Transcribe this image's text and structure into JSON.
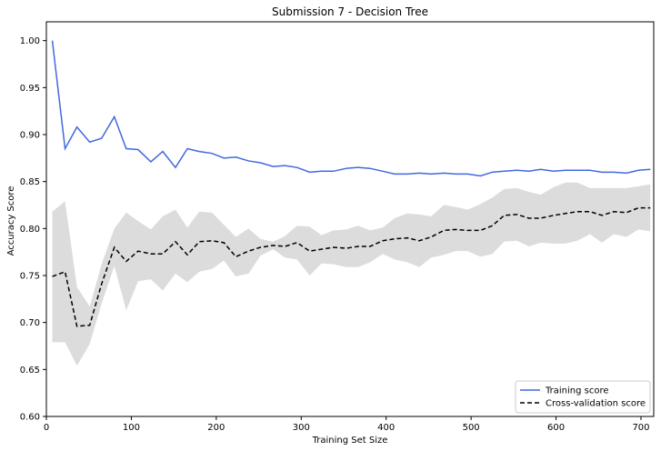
{
  "chart_data": {
    "type": "line",
    "title": "Submission 7 - Decision Tree",
    "xlabel": "Training Set Size",
    "ylabel": "Accuracy Score",
    "xlim": [
      0,
      715
    ],
    "ylim": [
      0.6,
      1.02
    ],
    "xticks": [
      0,
      100,
      200,
      300,
      400,
      500,
      600,
      700
    ],
    "yticks": [
      "0.60",
      "0.65",
      "0.70",
      "0.75",
      "0.80",
      "0.85",
      "0.90",
      "0.95",
      "1.00"
    ],
    "grid": false,
    "legend_position": "lower-right",
    "x": [
      7,
      22,
      36,
      51,
      65,
      80,
      94,
      108,
      123,
      137,
      152,
      166,
      180,
      195,
      209,
      223,
      238,
      252,
      267,
      281,
      295,
      310,
      324,
      338,
      353,
      367,
      381,
      396,
      410,
      425,
      439,
      453,
      468,
      482,
      496,
      511,
      525,
      539,
      554,
      568,
      582,
      597,
      611,
      625,
      640,
      654,
      668,
      683,
      697,
      711
    ],
    "series": [
      {
        "name": "Training score",
        "color": "#4169e1",
        "style": "solid",
        "values": [
          1.0,
          0.885,
          0.908,
          0.892,
          0.896,
          0.919,
          0.885,
          0.884,
          0.871,
          0.882,
          0.865,
          0.885,
          0.882,
          0.88,
          0.875,
          0.876,
          0.872,
          0.87,
          0.866,
          0.867,
          0.865,
          0.86,
          0.861,
          0.861,
          0.864,
          0.865,
          0.864,
          0.861,
          0.858,
          0.858,
          0.859,
          0.858,
          0.859,
          0.858,
          0.858,
          0.856,
          0.86,
          0.861,
          0.862,
          0.861,
          0.863,
          0.861,
          0.862,
          0.862,
          0.862,
          0.86,
          0.86,
          0.859,
          0.862,
          0.863
        ]
      },
      {
        "name": "Cross-validation score",
        "color": "#000000",
        "style": "dashed",
        "values": [
          0.749,
          0.754,
          0.696,
          0.697,
          0.741,
          0.78,
          0.765,
          0.776,
          0.773,
          0.773,
          0.786,
          0.772,
          0.786,
          0.787,
          0.785,
          0.77,
          0.776,
          0.78,
          0.782,
          0.781,
          0.785,
          0.776,
          0.778,
          0.78,
          0.779,
          0.781,
          0.781,
          0.787,
          0.789,
          0.79,
          0.787,
          0.791,
          0.798,
          0.799,
          0.798,
          0.798,
          0.803,
          0.814,
          0.815,
          0.811,
          0.811,
          0.814,
          0.816,
          0.818,
          0.818,
          0.814,
          0.818,
          0.817,
          0.822,
          0.822
        ],
        "band_lower": [
          0.679,
          0.679,
          0.654,
          0.677,
          0.72,
          0.76,
          0.713,
          0.744,
          0.746,
          0.734,
          0.752,
          0.743,
          0.754,
          0.757,
          0.766,
          0.749,
          0.752,
          0.771,
          0.778,
          0.769,
          0.767,
          0.75,
          0.763,
          0.762,
          0.759,
          0.759,
          0.764,
          0.773,
          0.767,
          0.764,
          0.759,
          0.769,
          0.772,
          0.776,
          0.776,
          0.77,
          0.773,
          0.786,
          0.787,
          0.781,
          0.785,
          0.784,
          0.784,
          0.787,
          0.794,
          0.785,
          0.794,
          0.791,
          0.799,
          0.797
        ],
        "band_upper": [
          0.818,
          0.829,
          0.738,
          0.717,
          0.762,
          0.8,
          0.817,
          0.808,
          0.799,
          0.813,
          0.82,
          0.801,
          0.818,
          0.817,
          0.804,
          0.791,
          0.8,
          0.789,
          0.786,
          0.792,
          0.803,
          0.802,
          0.793,
          0.798,
          0.799,
          0.803,
          0.798,
          0.801,
          0.811,
          0.816,
          0.815,
          0.813,
          0.825,
          0.823,
          0.82,
          0.826,
          0.833,
          0.842,
          0.843,
          0.839,
          0.836,
          0.844,
          0.849,
          0.849,
          0.843,
          0.843,
          0.843,
          0.843,
          0.845,
          0.847
        ]
      }
    ],
    "band_color": "#dcdcdc"
  }
}
